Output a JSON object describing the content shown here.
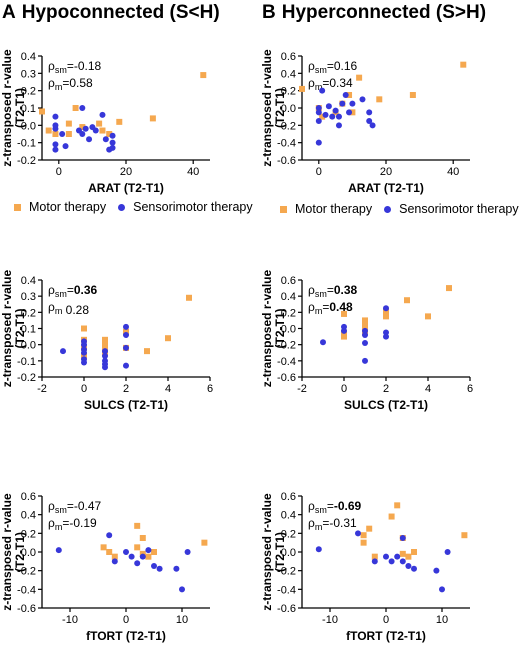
{
  "panels": {
    "A": {
      "letter": "A",
      "title": "Hypoconnected (S<H)"
    },
    "B": {
      "letter": "B",
      "title": "Hyperconnected (S>H)"
    }
  },
  "legend": [
    {
      "label": "Motor therapy",
      "color": "#F5A84F",
      "marker": "square"
    },
    {
      "label": "Sensorimotor therapy",
      "color": "#3737D9",
      "marker": "circle"
    }
  ],
  "chart_data": [
    {
      "id": "A-ARAT",
      "type": "scatter",
      "ylabel": "z-transposed r-value\n(T2-T1)",
      "xlabel": "ARAT (T2-T1)",
      "xlim": [
        -5,
        45
      ],
      "xticks": [
        0,
        20,
        40
      ],
      "ylim": [
        -0.2,
        0.4
      ],
      "yticks": [
        -0.2,
        -0.1,
        0.0,
        0.1,
        0.2,
        0.3,
        0.4
      ],
      "annotations": [
        {
          "sub": "sm",
          "value": "=-0.18",
          "bold": false
        },
        {
          "sub": "m",
          "value": "=0.58",
          "bold": false
        }
      ],
      "series": [
        {
          "name": "Motor therapy",
          "points": [
            [
              -5,
              0.08
            ],
            [
              -3,
              -0.03
            ],
            [
              -1,
              -0.05
            ],
            [
              3,
              -0.05
            ],
            [
              3,
              0.01
            ],
            [
              5,
              0.1
            ],
            [
              7,
              -0.01
            ],
            [
              12,
              0.01
            ],
            [
              13,
              -0.03
            ],
            [
              15,
              -0.05
            ],
            [
              18,
              0.02
            ],
            [
              28,
              0.04
            ],
            [
              43,
              0.29
            ]
          ]
        },
        {
          "name": "Sensorimotor therapy",
          "points": [
            [
              -1,
              0.05
            ],
            [
              -1,
              0.0
            ],
            [
              -1,
              -0.02
            ],
            [
              -1,
              -0.11
            ],
            [
              -1,
              -0.14
            ],
            [
              1,
              -0.05
            ],
            [
              2,
              -0.12
            ],
            [
              6,
              -0.03
            ],
            [
              7,
              -0.05
            ],
            [
              8,
              -0.02
            ],
            [
              9,
              -0.08
            ],
            [
              7,
              0.1
            ],
            [
              10,
              -0.01
            ],
            [
              11,
              -0.03
            ],
            [
              13,
              0.06
            ],
            [
              14,
              -0.08
            ],
            [
              16,
              -0.06
            ],
            [
              16,
              -0.1
            ],
            [
              15,
              -0.14
            ],
            [
              16,
              -0.13
            ]
          ]
        }
      ]
    },
    {
      "id": "B-ARAT",
      "type": "scatter",
      "ylabel": "z-transposed r-value\n(T2-T1)",
      "xlabel": "ARAT (T2-T1)",
      "xlim": [
        -5,
        45
      ],
      "xticks": [
        0,
        20,
        40
      ],
      "ylim": [
        -0.6,
        0.6
      ],
      "yticks": [
        -0.6,
        -0.4,
        -0.2,
        0.0,
        0.2,
        0.4,
        0.6
      ],
      "annotations": [
        {
          "sub": "sm",
          "value": "=0.16",
          "bold": false
        },
        {
          "sub": "m",
          "value": "=0.34",
          "bold": false
        }
      ],
      "series": [
        {
          "name": "Motor therapy",
          "points": [
            [
              -5,
              0.22
            ],
            [
              0,
              0.0
            ],
            [
              1,
              -0.1
            ],
            [
              5,
              -0.05
            ],
            [
              7,
              0.05
            ],
            [
              9,
              0.15
            ],
            [
              10,
              -0.05
            ],
            [
              12,
              0.35
            ],
            [
              18,
              0.1
            ],
            [
              28,
              0.15
            ],
            [
              43,
              0.5
            ]
          ]
        },
        {
          "name": "Sensorimotor therapy",
          "points": [
            [
              0,
              0.0
            ],
            [
              0,
              -0.05
            ],
            [
              0,
              -0.15
            ],
            [
              0,
              -0.4
            ],
            [
              1,
              0.2
            ],
            [
              2,
              -0.08
            ],
            [
              3,
              0.02
            ],
            [
              4,
              -0.1
            ],
            [
              5,
              -0.03
            ],
            [
              6,
              -0.1
            ],
            [
              6,
              -0.2
            ],
            [
              7,
              0.05
            ],
            [
              8,
              0.15
            ],
            [
              9,
              -0.05
            ],
            [
              10,
              0.05
            ],
            [
              13,
              0.1
            ],
            [
              15,
              -0.05
            ],
            [
              15,
              -0.15
            ],
            [
              16,
              -0.2
            ]
          ]
        }
      ]
    },
    {
      "id": "A-SULCS",
      "type": "scatter",
      "ylabel": "z-transposed r-value\n(T2-T1)",
      "xlabel": "SULCS (T2-T1)",
      "xlim": [
        -2,
        6
      ],
      "xticks": [
        -2,
        0,
        2,
        4,
        6
      ],
      "ylim": [
        -0.2,
        0.4
      ],
      "yticks": [
        -0.2,
        -0.1,
        0.0,
        0.1,
        0.2,
        0.3,
        0.4
      ],
      "annotations": [
        {
          "sub": "sm",
          "value": "=0.36",
          "bold": true
        },
        {
          "sub": "m",
          "value": " 0.28",
          "bold": false
        }
      ],
      "series": [
        {
          "name": "Motor therapy",
          "points": [
            [
              0,
              0.1
            ],
            [
              0,
              0.03
            ],
            [
              0,
              -0.02
            ],
            [
              0,
              -0.07
            ],
            [
              1,
              0.03
            ],
            [
              1,
              0.0
            ],
            [
              1,
              -0.02
            ],
            [
              1,
              -0.05
            ],
            [
              2,
              0.08
            ],
            [
              2,
              -0.02
            ],
            [
              3,
              -0.04
            ],
            [
              4,
              0.04
            ],
            [
              5,
              0.29
            ]
          ]
        },
        {
          "name": "Sensorimotor therapy",
          "points": [
            [
              -1,
              -0.04
            ],
            [
              0,
              0.02
            ],
            [
              0,
              0.0
            ],
            [
              0,
              -0.03
            ],
            [
              0,
              -0.05
            ],
            [
              0,
              -0.09
            ],
            [
              0,
              -0.11
            ],
            [
              1,
              -0.04
            ],
            [
              1,
              -0.07
            ],
            [
              1,
              -0.1
            ],
            [
              1,
              -0.12
            ],
            [
              1,
              -0.14
            ],
            [
              2,
              0.11
            ],
            [
              2,
              0.06
            ],
            [
              2,
              -0.02
            ],
            [
              2,
              -0.13
            ]
          ]
        }
      ]
    },
    {
      "id": "B-SULCS",
      "type": "scatter",
      "ylabel": "z-transposed r-value\n(T2-T1)",
      "xlabel": "SULCS (T2-T1)",
      "xlim": [
        -2,
        6
      ],
      "xticks": [
        -2,
        0,
        2,
        4,
        6
      ],
      "ylim": [
        -0.6,
        0.6
      ],
      "yticks": [
        -0.6,
        -0.4,
        -0.2,
        0.0,
        0.2,
        0.4,
        0.6
      ],
      "annotations": [
        {
          "sub": "sm",
          "value": "=0.38",
          "bold": true
        },
        {
          "sub": "m",
          "value": "=0.48",
          "bold": true
        }
      ],
      "series": [
        {
          "name": "Motor therapy",
          "points": [
            [
              0,
              0.18
            ],
            [
              0,
              -0.05
            ],
            [
              0,
              -0.1
            ],
            [
              1,
              0.1
            ],
            [
              1,
              0.05
            ],
            [
              1,
              0.0
            ],
            [
              1,
              -0.05
            ],
            [
              2,
              0.22
            ],
            [
              2,
              0.15
            ],
            [
              3,
              0.35
            ],
            [
              4,
              0.15
            ],
            [
              5,
              0.5
            ]
          ]
        },
        {
          "name": "Sensorimotor therapy",
          "points": [
            [
              -1,
              -0.17
            ],
            [
              0,
              0.02
            ],
            [
              0,
              -0.03
            ],
            [
              1,
              -0.03
            ],
            [
              1,
              -0.08
            ],
            [
              1,
              -0.18
            ],
            [
              1,
              -0.4
            ],
            [
              2,
              0.25
            ],
            [
              2,
              -0.05
            ],
            [
              2,
              -0.1
            ]
          ]
        }
      ]
    },
    {
      "id": "A-fTORT",
      "type": "scatter",
      "ylabel": "z-transposed r-value\n(T2-T1)",
      "xlabel": "fTORT (T2-T1)",
      "xlim": [
        -15,
        15
      ],
      "xticks": [
        -10,
        0,
        10
      ],
      "ylim": [
        -0.6,
        0.6
      ],
      "yticks": [
        -0.6,
        -0.4,
        -0.2,
        0.0,
        0.2,
        0.4,
        0.6
      ],
      "annotations": [
        {
          "sub": "sm",
          "value": "=-0.47",
          "bold": false
        },
        {
          "sub": "m",
          "value": "=-0.19",
          "bold": false
        }
      ],
      "series": [
        {
          "name": "Motor therapy",
          "points": [
            [
              -4,
              0.05
            ],
            [
              -3,
              0.0
            ],
            [
              -2,
              -0.05
            ],
            [
              2,
              0.28
            ],
            [
              2,
              0.05
            ],
            [
              3,
              0.15
            ],
            [
              3,
              -0.02
            ],
            [
              4,
              -0.05
            ],
            [
              5,
              0.0
            ],
            [
              14,
              0.1
            ]
          ]
        },
        {
          "name": "Sensorimotor therapy",
          "points": [
            [
              -12,
              0.02
            ],
            [
              -3,
              0.18
            ],
            [
              -2,
              -0.1
            ],
            [
              0,
              0.0
            ],
            [
              1,
              -0.05
            ],
            [
              2,
              -0.12
            ],
            [
              3,
              -0.05
            ],
            [
              4,
              0.02
            ],
            [
              5,
              -0.15
            ],
            [
              6,
              -0.18
            ],
            [
              9,
              -0.18
            ],
            [
              10,
              -0.4
            ],
            [
              11,
              0.0
            ]
          ]
        }
      ]
    },
    {
      "id": "B-fTORT",
      "type": "scatter",
      "ylabel": "z-transposed r-value\n(T2-T1)",
      "xlabel": "fTORT (T2-T1)",
      "xlim": [
        -15,
        15
      ],
      "xticks": [
        -10,
        0,
        10
      ],
      "ylim": [
        -0.6,
        0.6
      ],
      "yticks": [
        -0.6,
        -0.4,
        -0.2,
        0.0,
        0.2,
        0.4,
        0.6
      ],
      "annotations": [
        {
          "sub": "sm",
          "value": "=-0.69",
          "bold": true
        },
        {
          "sub": "m",
          "value": "=-0.31",
          "bold": false
        }
      ],
      "series": [
        {
          "name": "Motor therapy",
          "points": [
            [
              -4,
              0.18
            ],
            [
              -4,
              0.1
            ],
            [
              -3,
              0.25
            ],
            [
              -2,
              -0.05
            ],
            [
              1,
              0.38
            ],
            [
              2,
              0.5
            ],
            [
              3,
              0.15
            ],
            [
              3,
              -0.02
            ],
            [
              4,
              -0.05
            ],
            [
              5,
              0.0
            ],
            [
              14,
              0.18
            ]
          ]
        },
        {
          "name": "Sensorimotor therapy",
          "points": [
            [
              -12,
              0.03
            ],
            [
              -5,
              0.2
            ],
            [
              -2,
              -0.1
            ],
            [
              0,
              -0.05
            ],
            [
              1,
              -0.1
            ],
            [
              2,
              -0.05
            ],
            [
              3,
              0.15
            ],
            [
              3,
              -0.1
            ],
            [
              4,
              -0.15
            ],
            [
              5,
              -0.18
            ],
            [
              9,
              -0.2
            ],
            [
              10,
              -0.4
            ],
            [
              11,
              0.0
            ]
          ]
        }
      ]
    }
  ]
}
